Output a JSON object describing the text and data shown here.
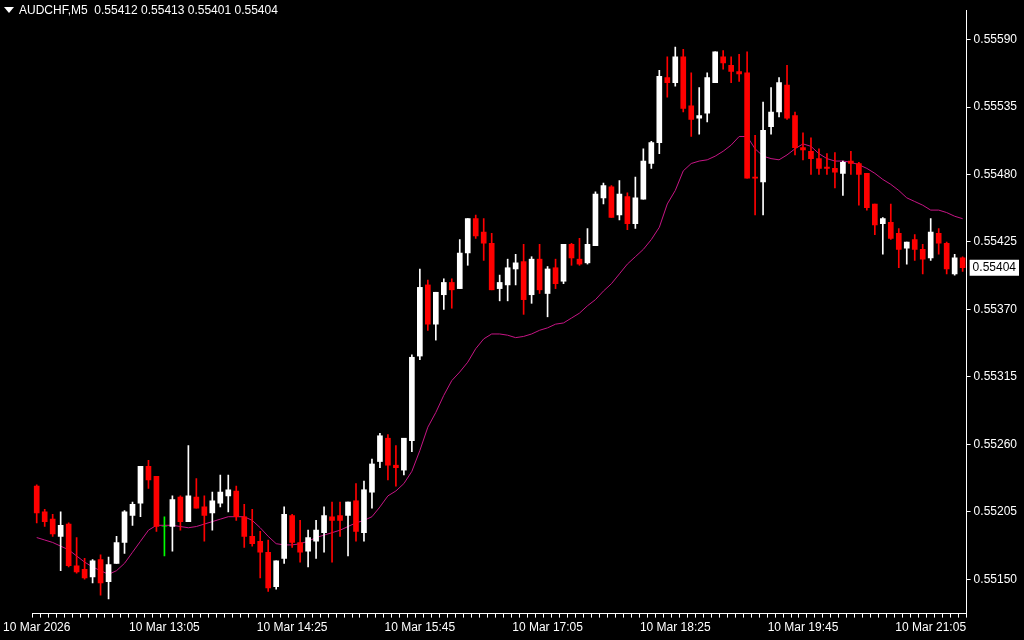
{
  "chart_data": {
    "type": "candlestick",
    "title": "AUDCHF,M5  0.55412 0.55413 0.55401 0.55404",
    "categories": [
      "10 Mar 2026",
      null,
      null,
      null,
      null,
      null,
      null,
      null,
      null,
      null,
      null,
      null,
      null,
      null,
      null,
      null,
      "10 Mar 13:05",
      null,
      null,
      null,
      null,
      null,
      null,
      null,
      null,
      null,
      null,
      null,
      null,
      null,
      null,
      null,
      "10 Mar 14:25",
      null,
      null,
      null,
      null,
      null,
      null,
      null,
      null,
      null,
      null,
      null,
      null,
      null,
      null,
      null,
      "10 Mar 15:45",
      null,
      null,
      null,
      null,
      null,
      null,
      null,
      null,
      null,
      null,
      null,
      null,
      null,
      null,
      null,
      "10 Mar 17:05",
      null,
      null,
      null,
      null,
      null,
      null,
      null,
      null,
      null,
      null,
      null,
      null,
      null,
      null,
      null,
      "10 Mar 18:25",
      null,
      null,
      null,
      null,
      null,
      null,
      null,
      null,
      null,
      null,
      null,
      null,
      null,
      null,
      null,
      "10 Mar 19:45",
      null,
      null,
      null,
      null,
      null,
      null,
      null,
      null,
      null,
      null,
      null,
      null,
      null,
      null,
      null,
      "10 Mar 21:05",
      null,
      null,
      null,
      null
    ],
    "ohlc": [
      [
        0.55226,
        0.55227,
        0.55196,
        0.55204
      ],
      [
        0.55205,
        0.55207,
        0.55193,
        0.55197
      ],
      [
        0.55199,
        0.55203,
        0.55185,
        0.55187
      ],
      [
        0.55185,
        0.55205,
        0.55157,
        0.55194
      ],
      [
        0.55195,
        0.55196,
        0.5516,
        0.55161
      ],
      [
        0.55161,
        0.55184,
        0.55155,
        0.55156
      ],
      [
        0.55158,
        0.55167,
        0.5515,
        0.55151
      ],
      [
        0.55152,
        0.55166,
        0.55147,
        0.55165
      ],
      [
        0.55166,
        0.5517,
        0.55137,
        0.55147
      ],
      [
        0.55148,
        0.55168,
        0.55134,
        0.55162
      ],
      [
        0.55163,
        0.55185,
        0.55163,
        0.5518
      ],
      [
        0.5518,
        0.55206,
        0.55171,
        0.55205
      ],
      [
        0.55202,
        0.55213,
        0.55194,
        0.55211
      ],
      [
        0.55212,
        0.55242,
        0.55201,
        0.55242
      ],
      [
        0.55242,
        0.55247,
        0.55224,
        0.55231
      ],
      [
        0.55234,
        0.55234,
        0.55189,
        0.55193
      ],
      [
        0.55193,
        0.55201,
        0.55169,
        0.55193
      ],
      [
        0.55193,
        0.55218,
        0.55173,
        0.55215
      ],
      [
        0.55217,
        0.55218,
        0.5519,
        0.55197
      ],
      [
        0.55197,
        0.55259,
        0.55197,
        0.55218
      ],
      [
        0.55217,
        0.55232,
        0.55208,
        0.55208
      ],
      [
        0.55209,
        0.55218,
        0.55181,
        0.55202
      ],
      [
        0.55204,
        0.55221,
        0.5519,
        0.55214
      ],
      [
        0.55212,
        0.55235,
        0.55209,
        0.55221
      ],
      [
        0.55218,
        0.55235,
        0.55205,
        0.55223
      ],
      [
        0.55222,
        0.55226,
        0.55198,
        0.55201
      ],
      [
        0.55201,
        0.55211,
        0.55176,
        0.55185
      ],
      [
        0.55185,
        0.55207,
        0.55177,
        0.55179
      ],
      [
        0.55181,
        0.55189,
        0.55151,
        0.55172
      ],
      [
        0.55172,
        0.55182,
        0.5514,
        0.55143
      ],
      [
        0.55144,
        0.55165,
        0.55142,
        0.55165
      ],
      [
        0.55167,
        0.55209,
        0.55163,
        0.55203
      ],
      [
        0.55202,
        0.55203,
        0.55176,
        0.5518
      ],
      [
        0.5518,
        0.55198,
        0.55164,
        0.55172
      ],
      [
        0.55173,
        0.5519,
        0.5516,
        0.55184
      ],
      [
        0.55181,
        0.55198,
        0.55167,
        0.5519
      ],
      [
        0.55188,
        0.55209,
        0.55172,
        0.55202
      ],
      [
        0.55201,
        0.55213,
        0.55164,
        0.55198
      ],
      [
        0.55202,
        0.55213,
        0.55185,
        0.55198
      ],
      [
        0.55202,
        0.55213,
        0.55169,
        0.55213
      ],
      [
        0.55214,
        0.55228,
        0.55181,
        0.55189
      ],
      [
        0.55188,
        0.5523,
        0.55181,
        0.55223
      ],
      [
        0.55221,
        0.55248,
        0.55208,
        0.55244
      ],
      [
        0.55246,
        0.55269,
        0.55241,
        0.55267
      ],
      [
        0.55265,
        0.55268,
        0.55231,
        0.55243
      ],
      [
        0.55243,
        0.55259,
        0.55226,
        0.55241
      ],
      [
        0.55239,
        0.55265,
        0.55235,
        0.55265
      ],
      [
        0.55263,
        0.55333,
        0.55254,
        0.55331
      ],
      [
        0.55332,
        0.55403,
        0.55329,
        0.55388
      ],
      [
        0.5539,
        0.55394,
        0.55353,
        0.55358
      ],
      [
        0.55358,
        0.55384,
        0.55345,
        0.55384
      ],
      [
        0.55382,
        0.55395,
        0.5537,
        0.55392
      ],
      [
        0.55392,
        0.55395,
        0.55371,
        0.55386
      ],
      [
        0.55387,
        0.55427,
        0.55387,
        0.55416
      ],
      [
        0.55416,
        0.55444,
        0.55406,
        0.55444
      ],
      [
        0.55444,
        0.55447,
        0.55428,
        0.5543
      ],
      [
        0.55433,
        0.55444,
        0.5541,
        0.55424
      ],
      [
        0.55424,
        0.55432,
        0.55386,
        0.55386
      ],
      [
        0.55387,
        0.55398,
        0.55377,
        0.55392
      ],
      [
        0.5539,
        0.55411,
        0.55377,
        0.55404
      ],
      [
        0.55403,
        0.55415,
        0.5539,
        0.55408
      ],
      [
        0.55409,
        0.55423,
        0.55366,
        0.55378
      ],
      [
        0.55382,
        0.55413,
        0.55375,
        0.55411
      ],
      [
        0.55411,
        0.55423,
        0.55383,
        0.55386
      ],
      [
        0.55383,
        0.55405,
        0.55364,
        0.55403
      ],
      [
        0.55404,
        0.55411,
        0.55387,
        0.55391
      ],
      [
        0.55393,
        0.55423,
        0.55391,
        0.55423
      ],
      [
        0.55423,
        0.55424,
        0.55406,
        0.55412
      ],
      [
        0.55411,
        0.55428,
        0.55406,
        0.55407
      ],
      [
        0.55408,
        0.55436,
        0.55407,
        0.55423
      ],
      [
        0.55422,
        0.55466,
        0.55422,
        0.55464
      ],
      [
        0.55461,
        0.55473,
        0.55456,
        0.55471
      ],
      [
        0.5547,
        0.55471,
        0.55445,
        0.55445
      ],
      [
        0.55447,
        0.55475,
        0.55443,
        0.55464
      ],
      [
        0.55462,
        0.55465,
        0.55435,
        0.5544
      ],
      [
        0.5544,
        0.55478,
        0.55436,
        0.55461
      ],
      [
        0.5546,
        0.55501,
        0.5546,
        0.55491
      ],
      [
        0.55489,
        0.55507,
        0.55485,
        0.55506
      ],
      [
        0.55506,
        0.55565,
        0.55497,
        0.5556
      ],
      [
        0.55559,
        0.55576,
        0.55543,
        0.55555
      ],
      [
        0.55555,
        0.55584,
        0.55552,
        0.55576
      ],
      [
        0.55576,
        0.55582,
        0.55531,
        0.55534
      ],
      [
        0.55536,
        0.55563,
        0.55511,
        0.55525
      ],
      [
        0.55526,
        0.55551,
        0.55513,
        0.55528
      ],
      [
        0.5553,
        0.55563,
        0.55523,
        0.55559
      ],
      [
        0.55555,
        0.5558,
        0.55555,
        0.5558
      ],
      [
        0.55576,
        0.55581,
        0.55566,
        0.55571
      ],
      [
        0.55569,
        0.55576,
        0.55555,
        0.55564
      ],
      [
        0.55564,
        0.55578,
        0.55556,
        0.55562
      ],
      [
        0.55563,
        0.5558,
        0.55477,
        0.55477
      ],
      [
        0.55478,
        0.55512,
        0.55447,
        0.55477
      ],
      [
        0.55474,
        0.55539,
        0.55447,
        0.55516
      ],
      [
        0.55519,
        0.55551,
        0.55513,
        0.55531
      ],
      [
        0.55531,
        0.55559,
        0.55527,
        0.55555
      ],
      [
        0.55553,
        0.55569,
        0.55525,
        0.55526
      ],
      [
        0.55528,
        0.55531,
        0.55496,
        0.55502
      ],
      [
        0.55502,
        0.55514,
        0.55492,
        0.555
      ],
      [
        0.55499,
        0.5551,
        0.5548,
        0.55493
      ],
      [
        0.55493,
        0.55501,
        0.5548,
        0.55485
      ],
      [
        0.55486,
        0.55497,
        0.5548,
        0.55485
      ],
      [
        0.55485,
        0.55498,
        0.55469,
        0.55482
      ],
      [
        0.55481,
        0.55491,
        0.55463,
        0.5549
      ],
      [
        0.55491,
        0.55499,
        0.5548,
        0.55489
      ],
      [
        0.55489,
        0.5549,
        0.55455,
        0.5548
      ],
      [
        0.55481,
        0.55481,
        0.55451,
        0.55453
      ],
      [
        0.55456,
        0.55456,
        0.55431,
        0.55439
      ],
      [
        0.5544,
        0.55445,
        0.55415,
        0.55444
      ],
      [
        0.55441,
        0.55456,
        0.55427,
        0.55428
      ],
      [
        0.55432,
        0.55436,
        0.55404,
        0.55419
      ],
      [
        0.5542,
        0.55425,
        0.55407,
        0.55425
      ],
      [
        0.55427,
        0.55431,
        0.5541,
        0.55419
      ],
      [
        0.55419,
        0.55423,
        0.55399,
        0.55411
      ],
      [
        0.55412,
        0.55444,
        0.5541,
        0.55433
      ],
      [
        0.55432,
        0.55436,
        0.55415,
        0.55424
      ],
      [
        0.55424,
        0.55425,
        0.55399,
        0.55403
      ],
      [
        0.55399,
        0.55415,
        0.55398,
        0.55412
      ],
      [
        0.55412,
        0.55413,
        0.55401,
        0.55404
      ]
    ],
    "colors": [
      "#ff0000",
      "#ff0000",
      "#ff0000",
      "#ffffff",
      "#ff0000",
      "#ff0000",
      "#ff0000",
      "#ffffff",
      "#ff0000",
      "#ffffff",
      "#ffffff",
      "#ffffff",
      "#ffffff",
      "#ffffff",
      "#ff0000",
      "#ff0000",
      "#00ff00",
      "#ffffff",
      "#ff0000",
      "#ffffff",
      "#ff0000",
      "#ff0000",
      "#ffffff",
      "#ffffff",
      "#ffffff",
      "#ff0000",
      "#ff0000",
      "#ff0000",
      "#ff0000",
      "#ff0000",
      "#ffffff",
      "#ffffff",
      "#ff0000",
      "#ff0000",
      "#ffffff",
      "#ffffff",
      "#ffffff",
      "#ff0000",
      "#ff0000",
      "#ffffff",
      "#ff0000",
      "#ffffff",
      "#ffffff",
      "#ffffff",
      "#ff0000",
      "#ff0000",
      "#ffffff",
      "#ffffff",
      "#ffffff",
      "#ff0000",
      "#ffffff",
      "#ffffff",
      "#ff0000",
      "#ffffff",
      "#ffffff",
      "#ff0000",
      "#ff0000",
      "#ff0000",
      "#ffffff",
      "#ffffff",
      "#ffffff",
      "#ff0000",
      "#ffffff",
      "#ff0000",
      "#ffffff",
      "#ff0000",
      "#ffffff",
      "#ff0000",
      "#ff0000",
      "#ffffff",
      "#ffffff",
      "#ffffff",
      "#ff0000",
      "#ffffff",
      "#ff0000",
      "#ffffff",
      "#ffffff",
      "#ffffff",
      "#ffffff",
      "#ff0000",
      "#ffffff",
      "#ff0000",
      "#ff0000",
      "#ffffff",
      "#ffffff",
      "#ffffff",
      "#ff0000",
      "#ff0000",
      "#ff0000",
      "#ff0000",
      "#ff0000",
      "#ffffff",
      "#ffffff",
      "#ffffff",
      "#ff0000",
      "#ff0000",
      "#ff0000",
      "#ff0000",
      "#ff0000",
      "#ff0000",
      "#ff0000",
      "#ffffff",
      "#ff0000",
      "#ff0000",
      "#ff0000",
      "#ff0000",
      "#ffffff",
      "#ff0000",
      "#ff0000",
      "#ffffff",
      "#ff0000",
      "#ff0000",
      "#ffffff",
      "#ff0000",
      "#ff0000",
      "#ffffff",
      "#ff0000"
    ],
    "series": [
      {
        "type": "line",
        "color": "#c71585",
        "marker": "none",
        "values": [
          0.55184,
          0.55182,
          0.5518,
          0.55177,
          0.55174,
          0.55169,
          0.55164,
          0.5516,
          0.55157,
          0.55154,
          0.55157,
          0.55163,
          0.55172,
          0.55181,
          0.5519,
          0.55194,
          0.55194,
          0.55194,
          0.55193,
          0.55192,
          0.55193,
          0.55195,
          0.55197,
          0.55199,
          0.55201,
          0.55201,
          0.55201,
          0.55198,
          0.55192,
          0.55185,
          0.55179,
          0.55178,
          0.55178,
          0.55179,
          0.55181,
          0.55184,
          0.55186,
          0.55188,
          0.5519,
          0.55193,
          0.55196,
          0.55198,
          0.55201,
          0.55209,
          0.55218,
          0.55222,
          0.55228,
          0.55238,
          0.55255,
          0.55274,
          0.55286,
          0.553,
          0.55312,
          0.55319,
          0.55327,
          0.55338,
          0.55346,
          0.5535,
          0.5535,
          0.55349,
          0.55347,
          0.55348,
          0.5535,
          0.55353,
          0.55355,
          0.55358,
          0.55359,
          0.55363,
          0.55367,
          0.55373,
          0.55378,
          0.55385,
          0.55391,
          0.55399,
          0.55407,
          0.55413,
          0.55419,
          0.55427,
          0.55437,
          0.55456,
          0.55467,
          0.55483,
          0.55489,
          0.55491,
          0.55492,
          0.55495,
          0.55499,
          0.55504,
          0.55511,
          0.55511,
          0.55501,
          0.55495,
          0.55493,
          0.55492,
          0.55496,
          0.55501,
          0.55505,
          0.55503,
          0.55497,
          0.55493,
          0.55491,
          0.55491,
          0.5549,
          0.55488,
          0.55485,
          0.55481,
          0.55476,
          0.55472,
          0.55467,
          0.55461,
          0.55458,
          0.55455,
          0.55451,
          0.55451,
          0.55449,
          0.55446,
          0.55444
        ]
      }
    ],
    "ylim": [
      0.55122,
      0.55614
    ],
    "yticks": [
      {
        "value": 0.5515,
        "label": "0.55150"
      },
      {
        "value": 0.55205,
        "label": "0.55205"
      },
      {
        "value": 0.5526,
        "label": "0.55260"
      },
      {
        "value": 0.55315,
        "label": "0.55315"
      },
      {
        "value": 0.5537,
        "label": "0.55370"
      },
      {
        "value": 0.55425,
        "label": "0.55425"
      },
      {
        "value": 0.5548,
        "label": "0.55480"
      },
      {
        "value": 0.55535,
        "label": "0.55535"
      },
      {
        "value": 0.5559,
        "label": "0.55590"
      }
    ],
    "annotations": [
      "0.55404"
    ],
    "grid": false,
    "legend": false
  }
}
